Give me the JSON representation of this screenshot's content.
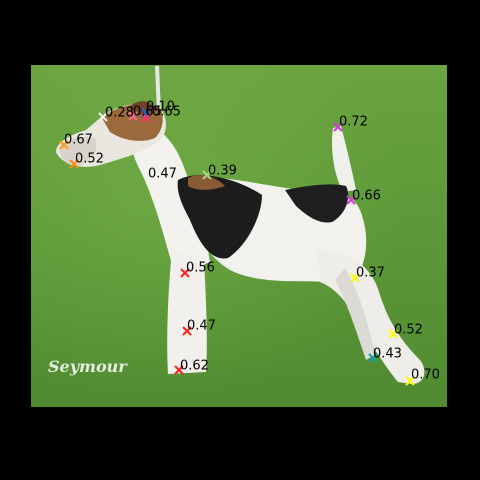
{
  "colors": {
    "background": "#000000",
    "grass": "#5f9a3a",
    "dog_white": "#f2f1ee",
    "dog_black": "#1c1c1c",
    "dog_tan": "#9a6a3d",
    "leash": "#e8e8e8"
  },
  "watermark": "Seymour",
  "keypoints": [
    {
      "score": "0.28",
      "color": "#f5f5f5"
    },
    {
      "score": "0.10",
      "color": "#1f5fd0"
    },
    {
      "score": "0.65",
      "color": "#ff6b8a"
    },
    {
      "score": "0.65",
      "color": "#ff3366"
    },
    {
      "score": "0.67",
      "color": "#ff9a1a"
    },
    {
      "score": "0.52",
      "color": "#ff8c1a"
    },
    {
      "score": "0.47",
      "color": ""
    },
    {
      "score": "0.39",
      "color": "#a6d67a"
    },
    {
      "score": "0.72",
      "color": "#d63ad6"
    },
    {
      "score": "0.66",
      "color": "#d63ad6"
    },
    {
      "score": "0.56",
      "color": "#ff2020"
    },
    {
      "score": "0.37",
      "color": "#ffff00"
    },
    {
      "score": "0.47",
      "color": "#ff2020"
    },
    {
      "score": "0.52",
      "color": "#ffff00"
    },
    {
      "score": "0.43",
      "color": "#19a0a0"
    },
    {
      "score": "0.62",
      "color": "#ff2020"
    },
    {
      "score": "0.70",
      "color": "#ffff00"
    }
  ]
}
